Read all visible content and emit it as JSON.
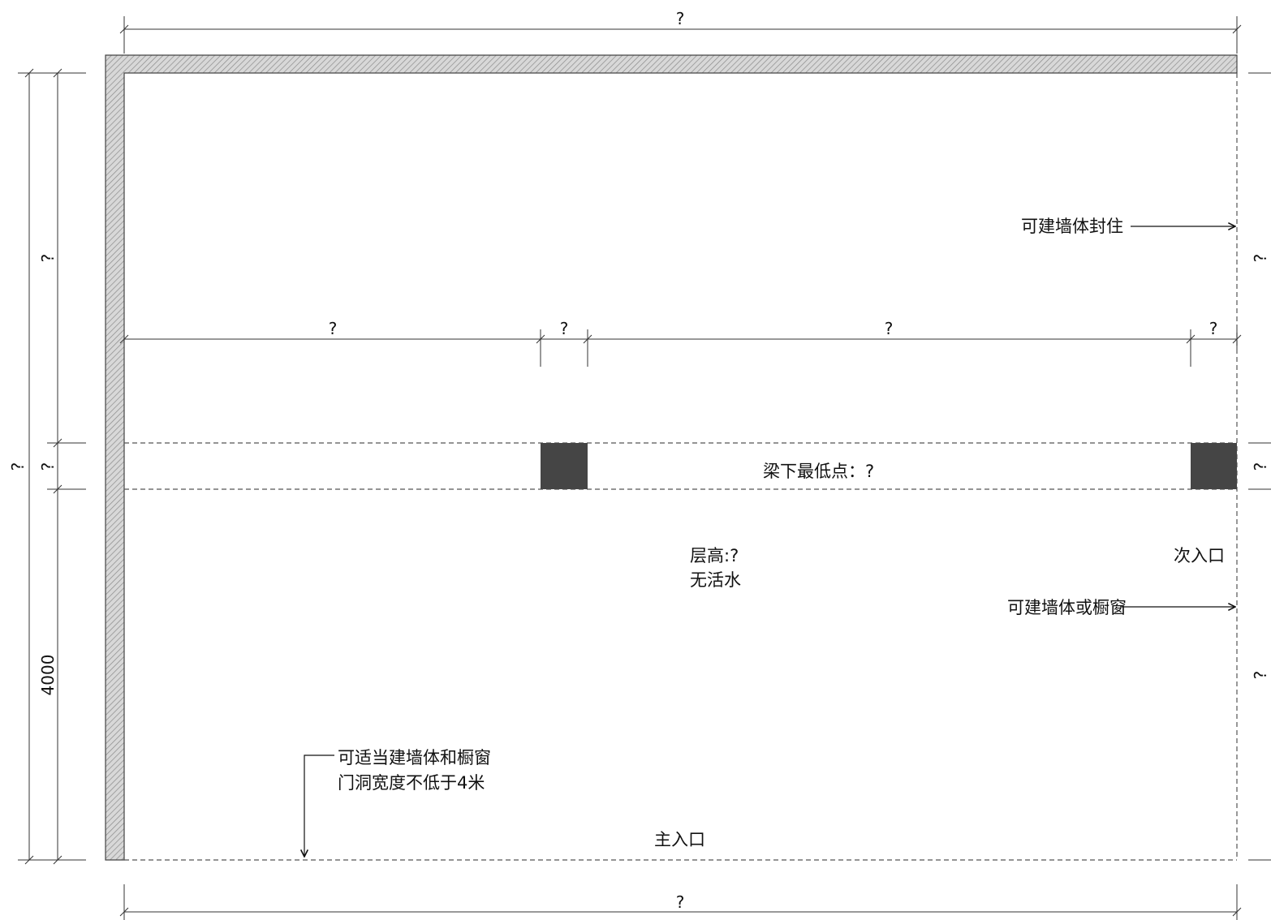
{
  "dimensions": {
    "top_total": "?",
    "bottom_total": "?",
    "left_total": "?",
    "left_upper": "?",
    "left_beam": "?",
    "left_lower": "4000",
    "right_upper": "?",
    "right_beam": "?",
    "right_lower": "?",
    "mid_seg1": "?",
    "mid_seg2": "?",
    "mid_seg3": "?",
    "mid_seg4": "?"
  },
  "labels": {
    "beam_lowest": "梁下最低点：?",
    "floor_height": "层高:?",
    "no_water": "无活水",
    "secondary_entrance": "次入口",
    "wall_sealable": "可建墙体封住",
    "wall_or_window": "可建墙体或橱窗",
    "main_note_line1": "可适当建墙体和橱窗",
    "main_note_line2": "门洞宽度不低于4米",
    "main_entrance": "主入口"
  },
  "colors": {
    "column_fill": "#454545",
    "wall_hatch": "#9a9a9a",
    "line": "#333333"
  }
}
